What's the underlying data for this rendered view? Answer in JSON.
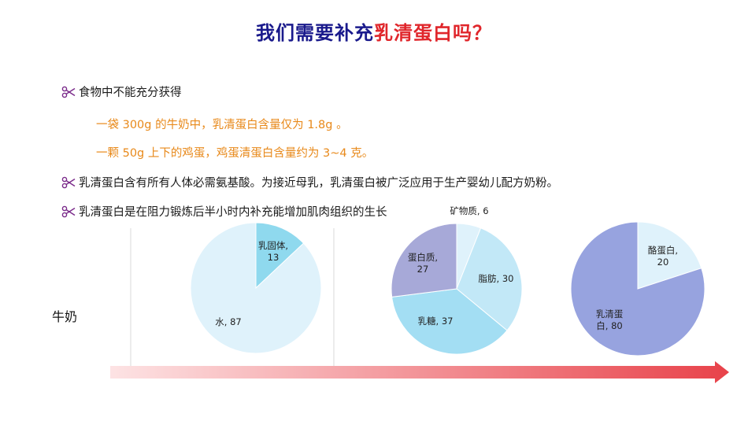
{
  "title": {
    "part1": "我们需要补充",
    "part2": "乳清蛋白吗？"
  },
  "colors": {
    "title_blue": "#1a1a8c",
    "title_red": "#e0262b",
    "sub_orange": "#e8891a",
    "arrow_red": "#e8424a",
    "bullet_icon": "#7a2a8a"
  },
  "bullets": [
    {
      "icon": "scissors-icon",
      "text": "食物中不能充分获得"
    },
    {
      "icon": "scissors-icon",
      "text": "乳清蛋白含有所有人体必需氨基酸。为接近母乳，乳清蛋白被广泛应用于生产婴幼儿配方奶粉。"
    },
    {
      "icon": "scissors-icon",
      "text": "乳清蛋白是在阻力锻炼后半小时内补充能增加肌肉组织的生长"
    }
  ],
  "sub_bullets": [
    "一袋 300g 的牛奶中，乳清蛋白含量仅为 1.8g 。",
    "一颗 50g 上下的鸡蛋，鸡蛋清蛋白含量约为 3~4 克。"
  ],
  "row_label": "牛奶",
  "chart_data": [
    {
      "type": "pie",
      "slices": [
        {
          "label": "乳固体, 13",
          "name": "乳固体",
          "value": 13,
          "color": "#8fd9ee"
        },
        {
          "label": "水, 87",
          "name": "水",
          "value": 87,
          "color": "#dff2fb"
        }
      ]
    },
    {
      "type": "pie",
      "slices": [
        {
          "label": "矿物质, 6",
          "name": "矿物质",
          "value": 6,
          "color": "#dff2fb"
        },
        {
          "label": "脂肪, 30",
          "name": "脂肪",
          "value": 30,
          "color": "#c2e8f7"
        },
        {
          "label": "乳糖, 37",
          "name": "乳糖",
          "value": 37,
          "color": "#a3def3"
        },
        {
          "label": "蛋白质, 27",
          "name": "蛋白质",
          "value": 27,
          "color": "#a7a9d8"
        }
      ]
    },
    {
      "type": "pie",
      "slices": [
        {
          "label": "酪蛋白, 20",
          "name": "酪蛋白",
          "value": 20,
          "color": "#dff2fb"
        },
        {
          "label": "乳清蛋白, 80",
          "name": "乳清蛋白",
          "value": 80,
          "color": "#97a3df"
        }
      ]
    }
  ]
}
